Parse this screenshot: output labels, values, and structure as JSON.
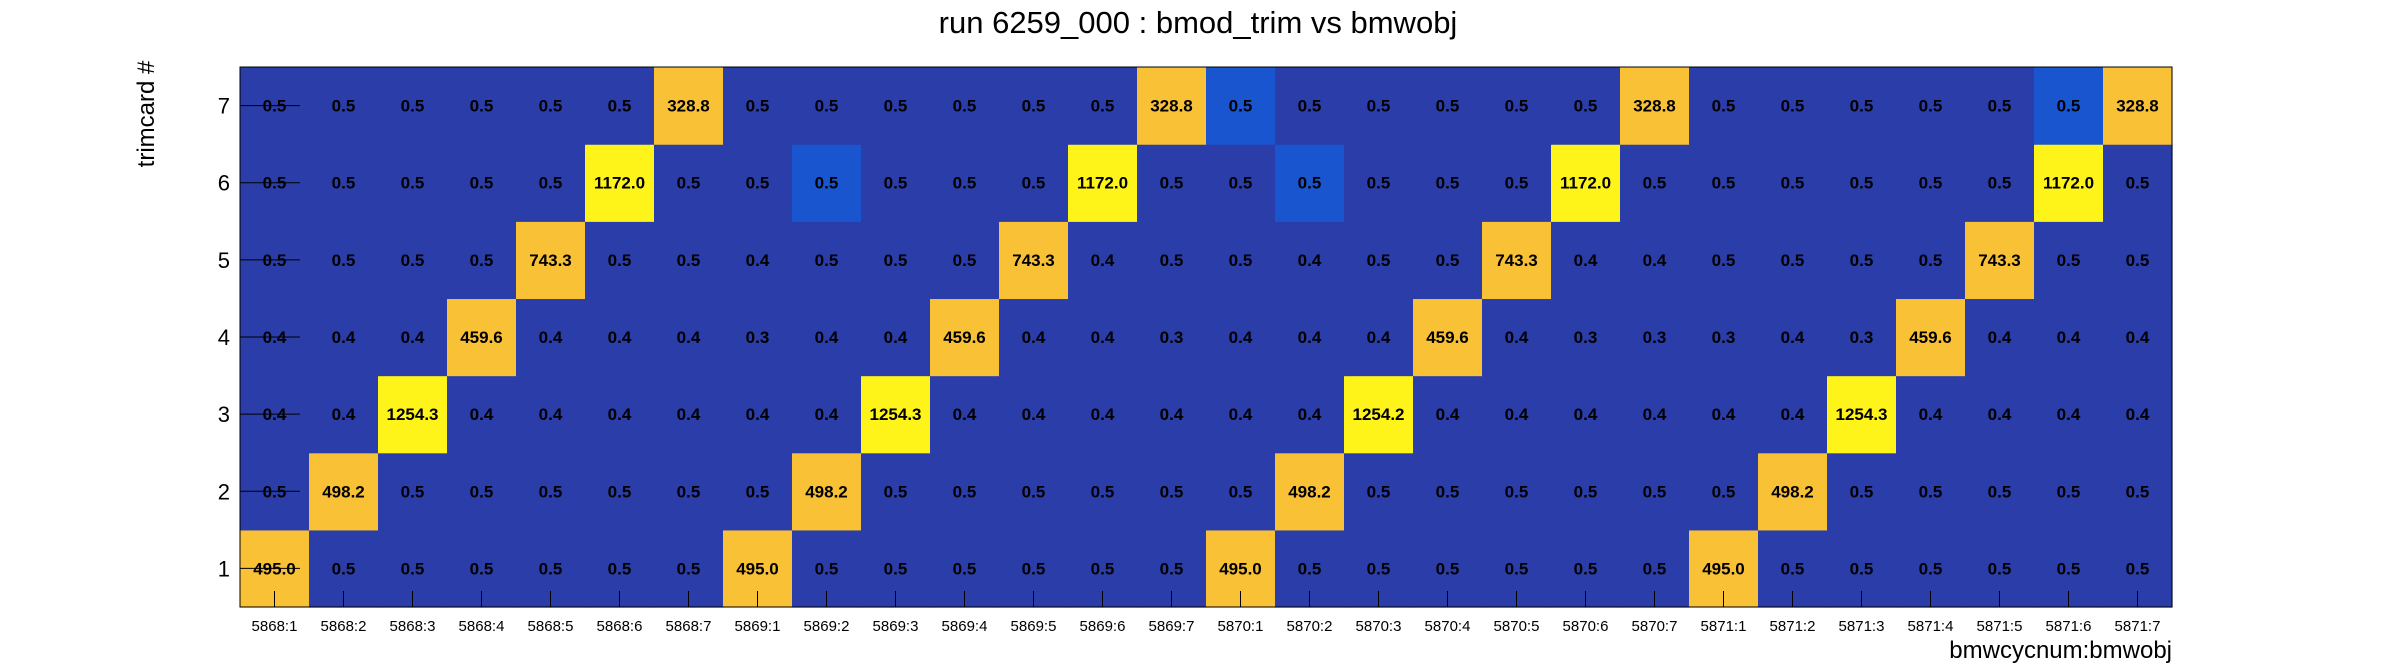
{
  "chart_data": {
    "type": "heatmap",
    "title": "run 6259_000 : bmod_trim vs bmwobj",
    "xlabel": "bmwcycnum:bmwobj",
    "ylabel": "trimcard #",
    "x_categories": [
      "5868:1",
      "5868:2",
      "5868:3",
      "5868:4",
      "5868:5",
      "5868:6",
      "5868:7",
      "5869:1",
      "5869:2",
      "5869:3",
      "5869:4",
      "5869:5",
      "5869:6",
      "5869:7",
      "5870:1",
      "5870:2",
      "5870:3",
      "5870:4",
      "5870:5",
      "5870:6",
      "5870:7",
      "5871:1",
      "5871:2",
      "5871:3",
      "5871:4",
      "5871:5",
      "5871:6",
      "5871:7"
    ],
    "y_categories": [
      "1",
      "2",
      "3",
      "4",
      "5",
      "6",
      "7"
    ],
    "values": [
      [
        495.0,
        0.5,
        0.5,
        0.5,
        0.5,
        0.5,
        0.5,
        495.0,
        0.5,
        0.5,
        0.5,
        0.5,
        0.5,
        0.5,
        495.0,
        0.5,
        0.5,
        0.5,
        0.5,
        0.5,
        0.5,
        495.0,
        0.5,
        0.5,
        0.5,
        0.5,
        0.5,
        0.5
      ],
      [
        0.5,
        498.2,
        0.5,
        0.5,
        0.5,
        0.5,
        0.5,
        0.5,
        498.2,
        0.5,
        0.5,
        0.5,
        0.5,
        0.5,
        0.5,
        498.2,
        0.5,
        0.5,
        0.5,
        0.5,
        0.5,
        0.5,
        498.2,
        0.5,
        0.5,
        0.5,
        0.5,
        0.5
      ],
      [
        0.4,
        0.4,
        1254.3,
        0.4,
        0.4,
        0.4,
        0.4,
        0.4,
        0.4,
        1254.3,
        0.4,
        0.4,
        0.4,
        0.4,
        0.4,
        0.4,
        1254.2,
        0.4,
        0.4,
        0.4,
        0.4,
        0.4,
        0.4,
        1254.3,
        0.4,
        0.4,
        0.4,
        0.4
      ],
      [
        0.4,
        0.4,
        0.4,
        459.6,
        0.4,
        0.4,
        0.4,
        0.3,
        0.4,
        0.4,
        459.6,
        0.4,
        0.4,
        0.3,
        0.4,
        0.4,
        0.4,
        459.6,
        0.4,
        0.3,
        0.3,
        0.3,
        0.4,
        0.3,
        459.6,
        0.4,
        0.4,
        0.4
      ],
      [
        0.5,
        0.5,
        0.5,
        0.5,
        743.3,
        0.5,
        0.5,
        0.4,
        0.5,
        0.5,
        0.5,
        743.3,
        0.4,
        0.5,
        0.5,
        0.4,
        0.5,
        0.5,
        743.3,
        0.4,
        0.4,
        0.5,
        0.5,
        0.5,
        0.5,
        743.3,
        0.5,
        0.5
      ],
      [
        0.5,
        0.5,
        0.5,
        0.5,
        0.5,
        1172.0,
        0.5,
        0.5,
        0.5,
        0.5,
        0.5,
        0.5,
        1172.0,
        0.5,
        0.5,
        0.5,
        0.5,
        0.5,
        0.5,
        1172.0,
        0.5,
        0.5,
        0.5,
        0.5,
        0.5,
        0.5,
        1172.0,
        0.5
      ],
      [
        0.5,
        0.5,
        0.5,
        0.5,
        0.5,
        0.5,
        328.8,
        0.5,
        0.5,
        0.5,
        0.5,
        0.5,
        0.5,
        328.8,
        0.5,
        0.5,
        0.5,
        0.5,
        0.5,
        0.5,
        328.8,
        0.5,
        0.5,
        0.5,
        0.5,
        0.5,
        0.5,
        328.8
      ]
    ],
    "colors": {
      "background": "#2a3da8",
      "highlight_blue": "#1a55d0",
      "high_yellow": "#fff419",
      "mid_yellow": "#f9c135"
    },
    "grid": false,
    "legend": "none"
  }
}
